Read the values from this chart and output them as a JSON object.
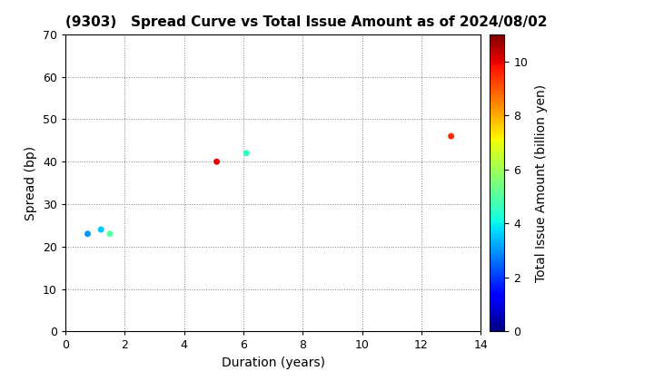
{
  "title": "(9303)   Spread Curve vs Total Issue Amount as of 2024/08/02",
  "xlabel": "Duration (years)",
  "ylabel": "Spread (bp)",
  "colorbar_label": "Total Issue Amount (billion yen)",
  "xlim": [
    0,
    14
  ],
  "ylim": [
    0,
    70
  ],
  "xticks": [
    0,
    2,
    4,
    6,
    8,
    10,
    12,
    14
  ],
  "yticks": [
    0,
    10,
    20,
    30,
    40,
    50,
    60,
    70
  ],
  "points": [
    {
      "duration": 0.75,
      "spread": 23,
      "amount": 3.0
    },
    {
      "duration": 1.2,
      "spread": 24,
      "amount": 3.5
    },
    {
      "duration": 1.5,
      "spread": 23,
      "amount": 5.0
    },
    {
      "duration": 5.1,
      "spread": 40,
      "amount": 10.0
    },
    {
      "duration": 6.1,
      "spread": 42,
      "amount": 4.5
    },
    {
      "duration": 13.0,
      "spread": 46,
      "amount": 9.5
    }
  ],
  "cmap": "jet",
  "vmin": 0,
  "vmax": 11,
  "colorbar_ticks": [
    0,
    2,
    4,
    6,
    8,
    10
  ],
  "marker_size": 25,
  "background_color": "#ffffff",
  "title_fontsize": 11,
  "axis_label_fontsize": 10,
  "tick_fontsize": 9
}
